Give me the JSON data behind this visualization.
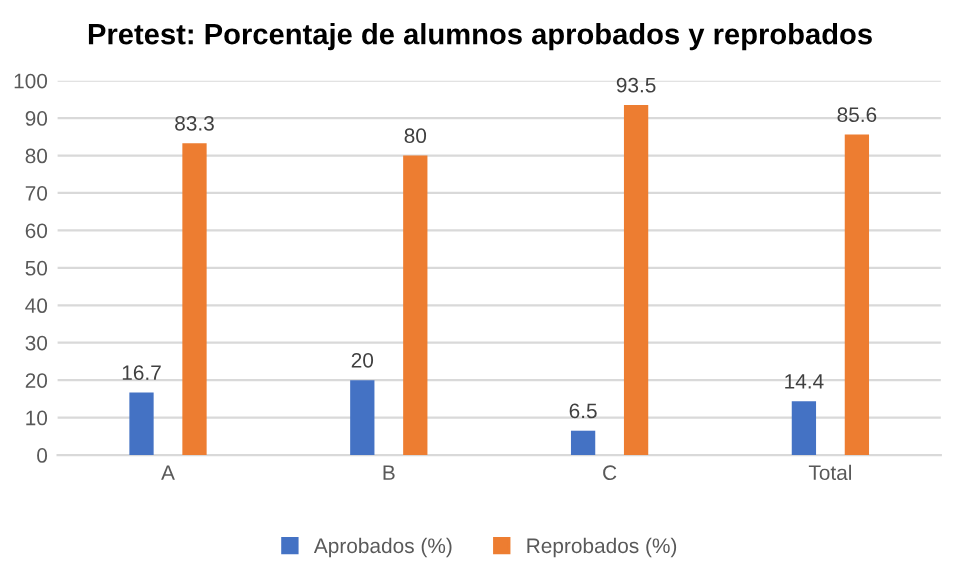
{
  "chart_data": {
    "type": "bar",
    "title": "Pretest: Porcentaje de alumnos aprobados y reprobados",
    "categories": [
      "A",
      "B",
      "C",
      "Total"
    ],
    "series": [
      {
        "name": "Aprobados (%)",
        "color": "#4472c4",
        "values": [
          16.7,
          20,
          6.5,
          14.4
        ]
      },
      {
        "name": "Reprobados (%)",
        "color": "#ed7d31",
        "values": [
          83.3,
          80,
          93.5,
          85.6
        ]
      }
    ],
    "ylim": [
      0,
      100
    ],
    "yticks": [
      0,
      10,
      20,
      30,
      40,
      50,
      60,
      70,
      80,
      90,
      100
    ],
    "grid": "y",
    "legend": "bottom",
    "data_labels": true
  }
}
